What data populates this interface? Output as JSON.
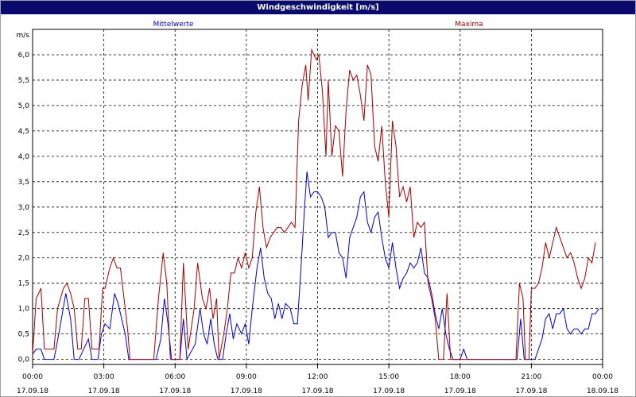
{
  "window": {
    "title": "Windgeschwindigkeit [m/s]"
  },
  "chart_data": {
    "type": "line",
    "title": "Windgeschwindigkeit [m/s]",
    "ylabel": "m/s",
    "ylim": [
      -0.1,
      6.5
    ],
    "yticks": [
      "0,0",
      "0,5",
      "1,0",
      "1,5",
      "2,0",
      "2,5",
      "3,0",
      "3,5",
      "4,0",
      "4,5",
      "5,0",
      "5,5",
      "6,0"
    ],
    "xlim": [
      0,
      24
    ],
    "xticks": [
      {
        "time": "00:00",
        "date": "17.09.18"
      },
      {
        "time": "03:00",
        "date": "17.09.18"
      },
      {
        "time": "06:00",
        "date": "17.09.18"
      },
      {
        "time": "09:00",
        "date": "17.09.18"
      },
      {
        "time": "12:00",
        "date": "17.09.18"
      },
      {
        "time": "15:00",
        "date": "17.09.18"
      },
      {
        "time": "18:00",
        "date": "17.09.18"
      },
      {
        "time": "21:00",
        "date": "17.09.18"
      },
      {
        "time": "00:00",
        "date": "18.09.18"
      }
    ],
    "grid": true,
    "series": [
      {
        "name": "Mittelwerte",
        "color": "#0000c8",
        "points": [
          [
            0,
            0.1
          ],
          [
            0.15,
            0.2
          ],
          [
            0.35,
            0.2
          ],
          [
            0.5,
            0
          ],
          [
            0.9,
            0
          ],
          [
            1.1,
            0.5
          ],
          [
            1.4,
            1.3
          ],
          [
            1.6,
            0.8
          ],
          [
            1.75,
            0
          ],
          [
            1.95,
            0
          ],
          [
            2.15,
            0.2
          ],
          [
            2.35,
            0.4
          ],
          [
            2.5,
            0
          ],
          [
            2.75,
            0
          ],
          [
            2.9,
            0.5
          ],
          [
            3.05,
            0.7
          ],
          [
            3.25,
            0.6
          ],
          [
            3.45,
            1.3
          ],
          [
            3.6,
            1.1
          ],
          [
            3.75,
            0.8
          ],
          [
            3.9,
            0.5
          ],
          [
            4.05,
            0
          ],
          [
            5.2,
            0
          ],
          [
            5.4,
            0.4
          ],
          [
            5.55,
            1.2
          ],
          [
            5.7,
            0.7
          ],
          [
            5.85,
            0
          ],
          [
            6.2,
            0
          ],
          [
            6.35,
            0.8
          ],
          [
            6.5,
            0
          ],
          [
            6.85,
            0.3
          ],
          [
            7.05,
            1.0
          ],
          [
            7.2,
            0.5
          ],
          [
            7.35,
            0.3
          ],
          [
            7.5,
            0.8
          ],
          [
            7.65,
            0.3
          ],
          [
            7.8,
            0
          ],
          [
            8.0,
            0
          ],
          [
            8.15,
            0.5
          ],
          [
            8.3,
            0.9
          ],
          [
            8.45,
            0.4
          ],
          [
            8.6,
            0.7
          ],
          [
            8.8,
            0.5
          ],
          [
            8.95,
            0.7
          ],
          [
            9.1,
            0.3
          ],
          [
            9.25,
            1.0
          ],
          [
            9.45,
            1.8
          ],
          [
            9.6,
            2.2
          ],
          [
            9.75,
            1.6
          ],
          [
            9.9,
            1.3
          ],
          [
            10.05,
            1.2
          ],
          [
            10.2,
            0.8
          ],
          [
            10.35,
            1.1
          ],
          [
            10.5,
            0.8
          ],
          [
            10.65,
            1.1
          ],
          [
            10.85,
            1.0
          ],
          [
            11.0,
            0.7
          ],
          [
            11.15,
            0.7
          ],
          [
            11.3,
            1.8
          ],
          [
            11.45,
            3.0
          ],
          [
            11.55,
            3.7
          ],
          [
            11.7,
            3.2
          ],
          [
            11.85,
            3.3
          ],
          [
            12.0,
            3.3
          ],
          [
            12.15,
            3.2
          ],
          [
            12.3,
            3.0
          ],
          [
            12.45,
            2.4
          ],
          [
            12.6,
            2.5
          ],
          [
            12.75,
            2.5
          ],
          [
            12.9,
            2.1
          ],
          [
            13.05,
            2.0
          ],
          [
            13.2,
            1.6
          ],
          [
            13.35,
            2.4
          ],
          [
            13.5,
            2.6
          ],
          [
            13.65,
            2.8
          ],
          [
            13.8,
            3.2
          ],
          [
            13.95,
            3.3
          ],
          [
            14.1,
            2.7
          ],
          [
            14.25,
            2.5
          ],
          [
            14.4,
            2.8
          ],
          [
            14.55,
            2.9
          ],
          [
            14.7,
            2.4
          ],
          [
            14.85,
            2.0
          ],
          [
            15.0,
            1.8
          ],
          [
            15.15,
            2.3
          ],
          [
            15.3,
            1.8
          ],
          [
            15.45,
            1.4
          ],
          [
            15.6,
            1.6
          ],
          [
            15.75,
            1.7
          ],
          [
            15.9,
            1.9
          ],
          [
            16.05,
            1.8
          ],
          [
            16.2,
            1.9
          ],
          [
            16.35,
            2.2
          ],
          [
            16.5,
            1.7
          ],
          [
            16.65,
            1.6
          ],
          [
            16.8,
            1.3
          ],
          [
            16.95,
            0.9
          ],
          [
            17.1,
            0.6
          ],
          [
            17.25,
            1.0
          ],
          [
            17.4,
            0.5
          ],
          [
            17.55,
            0.2
          ],
          [
            17.7,
            0
          ],
          [
            18.0,
            0
          ],
          [
            18.15,
            0.2
          ],
          [
            18.3,
            0
          ],
          [
            20.4,
            0
          ],
          [
            20.55,
            0.8
          ],
          [
            20.7,
            0
          ],
          [
            20.85,
            0
          ],
          [
            21.0,
            0
          ],
          [
            21.15,
            0
          ],
          [
            21.3,
            0.2
          ],
          [
            21.45,
            0.4
          ],
          [
            21.6,
            0.8
          ],
          [
            21.75,
            0.9
          ],
          [
            21.9,
            0.6
          ],
          [
            22.05,
            0.9
          ],
          [
            22.2,
            0.9
          ],
          [
            22.35,
            1.0
          ],
          [
            22.5,
            0.6
          ],
          [
            22.65,
            0.5
          ],
          [
            22.8,
            0.6
          ],
          [
            22.95,
            0.6
          ],
          [
            23.1,
            0.5
          ],
          [
            23.25,
            0.6
          ],
          [
            23.4,
            0.6
          ],
          [
            23.55,
            0.9
          ],
          [
            23.7,
            0.9
          ],
          [
            23.85,
            1.0
          ]
        ]
      },
      {
        "name": "Maxima",
        "color": "#a00000",
        "points": [
          [
            0,
            0.1
          ],
          [
            0.15,
            1.2
          ],
          [
            0.35,
            1.4
          ],
          [
            0.5,
            0.2
          ],
          [
            0.9,
            0.2
          ],
          [
            1.05,
            1.0
          ],
          [
            1.3,
            1.4
          ],
          [
            1.45,
            1.5
          ],
          [
            1.6,
            1.3
          ],
          [
            1.75,
            1.0
          ],
          [
            1.9,
            0.2
          ],
          [
            2.05,
            0.2
          ],
          [
            2.2,
            1.2
          ],
          [
            2.35,
            1.2
          ],
          [
            2.5,
            0.2
          ],
          [
            2.8,
            0.2
          ],
          [
            2.95,
            1.4
          ],
          [
            3.05,
            1.4
          ],
          [
            3.25,
            1.8
          ],
          [
            3.4,
            2.0
          ],
          [
            3.55,
            1.8
          ],
          [
            3.7,
            1.8
          ],
          [
            3.85,
            1.2
          ],
          [
            4.0,
            0.6
          ],
          [
            4.1,
            0
          ],
          [
            5.1,
            0
          ],
          [
            5.3,
            1.2
          ],
          [
            5.5,
            2.1
          ],
          [
            5.65,
            1.5
          ],
          [
            5.8,
            0
          ],
          [
            6.2,
            0
          ],
          [
            6.35,
            1.9
          ],
          [
            6.55,
            0.2
          ],
          [
            6.8,
            1.0
          ],
          [
            6.95,
            1.9
          ],
          [
            7.15,
            1.2
          ],
          [
            7.3,
            1.0
          ],
          [
            7.45,
            1.4
          ],
          [
            7.6,
            0.8
          ],
          [
            7.75,
            1.2
          ],
          [
            7.85,
            0
          ],
          [
            8.05,
            0.5
          ],
          [
            8.2,
            1.0
          ],
          [
            8.35,
            1.7
          ],
          [
            8.5,
            1.7
          ],
          [
            8.65,
            2.0
          ],
          [
            8.8,
            1.8
          ],
          [
            8.95,
            2.1
          ],
          [
            9.1,
            1.8
          ],
          [
            9.25,
            2.0
          ],
          [
            9.4,
            2.9
          ],
          [
            9.55,
            3.4
          ],
          [
            9.7,
            2.6
          ],
          [
            9.85,
            2.2
          ],
          [
            10.0,
            2.4
          ],
          [
            10.15,
            2.5
          ],
          [
            10.3,
            2.6
          ],
          [
            10.45,
            2.6
          ],
          [
            10.6,
            2.5
          ],
          [
            10.75,
            2.6
          ],
          [
            10.9,
            2.7
          ],
          [
            11.05,
            2.6
          ],
          [
            11.2,
            4.7
          ],
          [
            11.35,
            5.4
          ],
          [
            11.5,
            5.8
          ],
          [
            11.6,
            5.1
          ],
          [
            11.75,
            6.1
          ],
          [
            11.85,
            6.0
          ],
          [
            11.95,
            5.9
          ],
          [
            12.05,
            6.0
          ],
          [
            12.2,
            5.3
          ],
          [
            12.35,
            4.0
          ],
          [
            12.45,
            5.5
          ],
          [
            12.6,
            4.0
          ],
          [
            12.75,
            4.6
          ],
          [
            12.9,
            4.5
          ],
          [
            13.05,
            3.6
          ],
          [
            13.2,
            4.9
          ],
          [
            13.35,
            5.7
          ],
          [
            13.5,
            5.5
          ],
          [
            13.65,
            5.6
          ],
          [
            13.8,
            5.2
          ],
          [
            13.95,
            4.7
          ],
          [
            14.1,
            5.8
          ],
          [
            14.25,
            5.6
          ],
          [
            14.4,
            4.2
          ],
          [
            14.55,
            3.9
          ],
          [
            14.7,
            4.6
          ],
          [
            14.85,
            3.5
          ],
          [
            15.0,
            2.8
          ],
          [
            15.15,
            4.7
          ],
          [
            15.3,
            4.2
          ],
          [
            15.45,
            3.2
          ],
          [
            15.6,
            3.4
          ],
          [
            15.75,
            3.1
          ],
          [
            15.9,
            3.4
          ],
          [
            16.05,
            2.4
          ],
          [
            16.2,
            2.7
          ],
          [
            16.35,
            2.6
          ],
          [
            16.5,
            2.7
          ],
          [
            16.65,
            1.5
          ],
          [
            16.8,
            1.2
          ],
          [
            16.95,
            0.8
          ],
          [
            17.1,
            0
          ],
          [
            17.3,
            0
          ],
          [
            17.45,
            1.3
          ],
          [
            17.6,
            0
          ],
          [
            20.35,
            0
          ],
          [
            20.5,
            1.5
          ],
          [
            20.65,
            1.2
          ],
          [
            20.75,
            0
          ],
          [
            20.9,
            0
          ],
          [
            21.0,
            1.4
          ],
          [
            21.15,
            1.4
          ],
          [
            21.3,
            1.5
          ],
          [
            21.45,
            1.8
          ],
          [
            21.6,
            2.3
          ],
          [
            21.75,
            2.0
          ],
          [
            21.9,
            2.3
          ],
          [
            22.05,
            2.6
          ],
          [
            22.2,
            2.4
          ],
          [
            22.35,
            2.2
          ],
          [
            22.5,
            2.0
          ],
          [
            22.65,
            2.1
          ],
          [
            22.8,
            1.9
          ],
          [
            22.95,
            1.6
          ],
          [
            23.1,
            1.4
          ],
          [
            23.25,
            1.6
          ],
          [
            23.4,
            2.0
          ],
          [
            23.55,
            1.9
          ],
          [
            23.7,
            2.3
          ]
        ]
      }
    ]
  }
}
